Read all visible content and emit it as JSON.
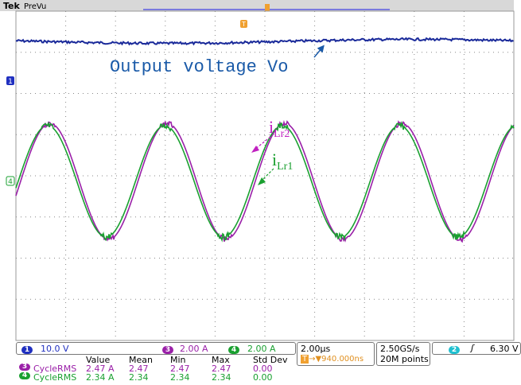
{
  "header": {
    "brand": "Tek",
    "mode": "PreVu"
  },
  "markers": {
    "ch1": "1",
    "ch4": "4",
    "trigger": "T"
  },
  "annotations": {
    "vo": "Output voltage Vo",
    "ilr2": {
      "main": "i",
      "sub": "Lr2"
    },
    "ilr1": {
      "main": "i",
      "sub": "Lr1"
    }
  },
  "status": {
    "ch1": {
      "num": "1",
      "scale": "10.0 V"
    },
    "ch3": {
      "num": "3",
      "scale": "2.00 A"
    },
    "ch4": {
      "num": "4",
      "scale": "2.00 A"
    },
    "timebase": "2.00µs",
    "trigger_marker": "T",
    "trigger_pos": "→▼940.000ns",
    "sample_rate": "2.50GS/s",
    "record": "20M points",
    "trigger_ch": "2",
    "trigger_slope": "ʃ",
    "trigger_level": "6.30 V"
  },
  "measurements": {
    "columns": [
      "Value",
      "Mean",
      "Min",
      "Max",
      "Std Dev"
    ],
    "rows": [
      {
        "ch": "3",
        "name": "CycleRMS",
        "cells": [
          "2.47 A",
          "2.47",
          "2.47",
          "2.47",
          "0.00"
        ]
      },
      {
        "ch": "4",
        "name": "CycleRMS",
        "cells": [
          "2.34 A",
          "2.34",
          "2.34",
          "2.34",
          "0.00"
        ]
      }
    ]
  }
}
